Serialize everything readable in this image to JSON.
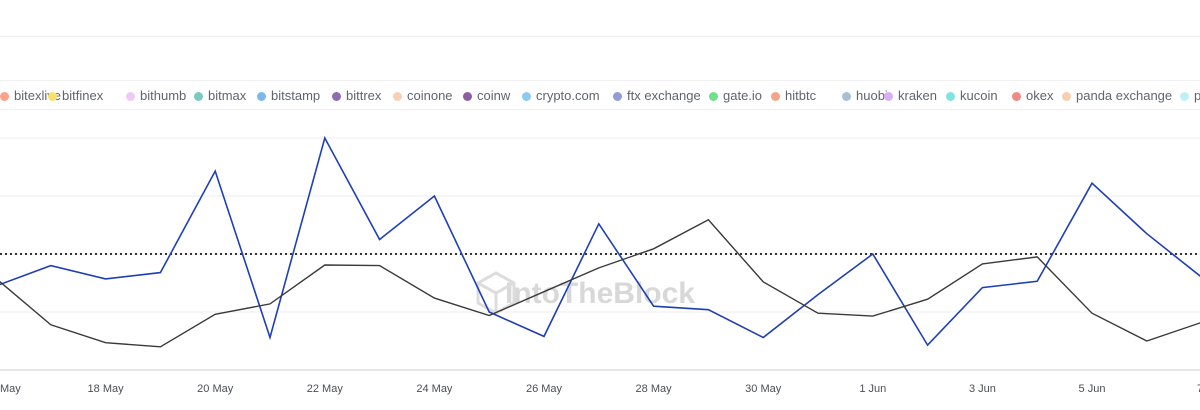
{
  "colors": {
    "series_blue": "#1f3fb5",
    "series_dark": "#3a3a3a",
    "reference": "#333333",
    "grid": "#eeeeee"
  },
  "legend": [
    {
      "label": "bitexlive",
      "color": "#ffa08a"
    },
    {
      "label": "bitfinex",
      "color": "#f5e16b"
    },
    {
      "label": "bithumb",
      "color": "#f0c9f5"
    },
    {
      "label": "bitmax",
      "color": "#7bc9c4"
    },
    {
      "label": "bitstamp",
      "color": "#7ab8f0"
    },
    {
      "label": "bittrex",
      "color": "#8d6bb0"
    },
    {
      "label": "coinone",
      "color": "#f8d1b5"
    },
    {
      "label": "coinw",
      "color": "#8b5fa0"
    },
    {
      "label": "crypto.com",
      "color": "#8ccbf0"
    },
    {
      "label": "ftx exchange",
      "color": "#8f9dd8"
    },
    {
      "label": "gate.io",
      "color": "#6fe08b"
    },
    {
      "label": "hitbtc",
      "color": "#f4a587"
    },
    {
      "label": "huobi",
      "color": "#a9bfd6"
    },
    {
      "label": "kraken",
      "color": "#d8aef5"
    },
    {
      "label": "kucoin",
      "color": "#7fe4de"
    },
    {
      "label": "okex",
      "color": "#f08a85"
    },
    {
      "label": "panda exchange",
      "color": "#f8ceb0"
    },
    {
      "label": "p",
      "color": "#bff0f3"
    }
  ],
  "watermark": "IntoTheBlock",
  "chart_data": {
    "type": "line",
    "title": "",
    "xlabel": "",
    "ylabel": "",
    "x_ticks": [
      "May",
      "18 May",
      "20 May",
      "22 May",
      "24 May",
      "26 May",
      "28 May",
      "30 May",
      "1 Jun",
      "3 Jun",
      "5 Jun",
      "7"
    ],
    "x": [
      "16 May",
      "17 May",
      "18 May",
      "19 May",
      "20 May",
      "21 May",
      "22 May",
      "23 May",
      "24 May",
      "25 May",
      "26 May",
      "27 May",
      "28 May",
      "29 May",
      "30 May",
      "31 May",
      "1 Jun",
      "2 Jun",
      "3 Jun",
      "4 Jun",
      "5 Jun",
      "6 Jun",
      "7 Jun"
    ],
    "ylim": [
      0,
      4
    ],
    "grid": true,
    "reference_line": 2.0,
    "series": [
      {
        "values": [
          1.45,
          1.8,
          1.57,
          1.68,
          3.43,
          0.56,
          4.0,
          2.25,
          3.0,
          1.0,
          0.58,
          2.52,
          1.1,
          1.04,
          0.56,
          1.3,
          2.0,
          0.43,
          1.42,
          1.53,
          3.22,
          2.35,
          1.6
        ]
      },
      {
        "values": [
          1.58,
          0.78,
          0.47,
          0.4,
          0.96,
          1.14,
          1.81,
          1.8,
          1.24,
          0.94,
          1.35,
          1.76,
          2.09,
          2.59,
          1.52,
          0.98,
          0.93,
          1.22,
          1.83,
          1.95,
          0.98,
          0.5,
          0.82
        ]
      }
    ]
  }
}
